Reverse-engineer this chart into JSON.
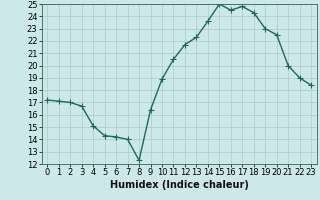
{
  "x": [
    0,
    1,
    2,
    3,
    4,
    5,
    6,
    7,
    8,
    9,
    10,
    11,
    12,
    13,
    14,
    15,
    16,
    17,
    18,
    19,
    20,
    21,
    22,
    23
  ],
  "y": [
    17.2,
    17.1,
    17.0,
    16.7,
    15.1,
    14.3,
    14.2,
    14.0,
    12.3,
    16.4,
    18.9,
    20.5,
    21.7,
    22.3,
    23.6,
    25.0,
    24.5,
    24.8,
    24.3,
    23.0,
    22.5,
    20.0,
    19.0,
    18.4
  ],
  "line_color": "#1a6b5a",
  "bg_color": "#cce8e8",
  "grid_color": "#aacccc",
  "xlabel": "Humidex (Indice chaleur)",
  "ylim": [
    12,
    25
  ],
  "xlim_min": -0.5,
  "xlim_max": 23.5,
  "yticks": [
    12,
    13,
    14,
    15,
    16,
    17,
    18,
    19,
    20,
    21,
    22,
    23,
    24,
    25
  ],
  "xticks": [
    0,
    1,
    2,
    3,
    4,
    5,
    6,
    7,
    8,
    9,
    10,
    11,
    12,
    13,
    14,
    15,
    16,
    17,
    18,
    19,
    20,
    21,
    22,
    23
  ],
  "marker": "+",
  "markersize": 4,
  "linewidth": 1.0,
  "fontsize_label": 7,
  "fontsize_tick": 6
}
